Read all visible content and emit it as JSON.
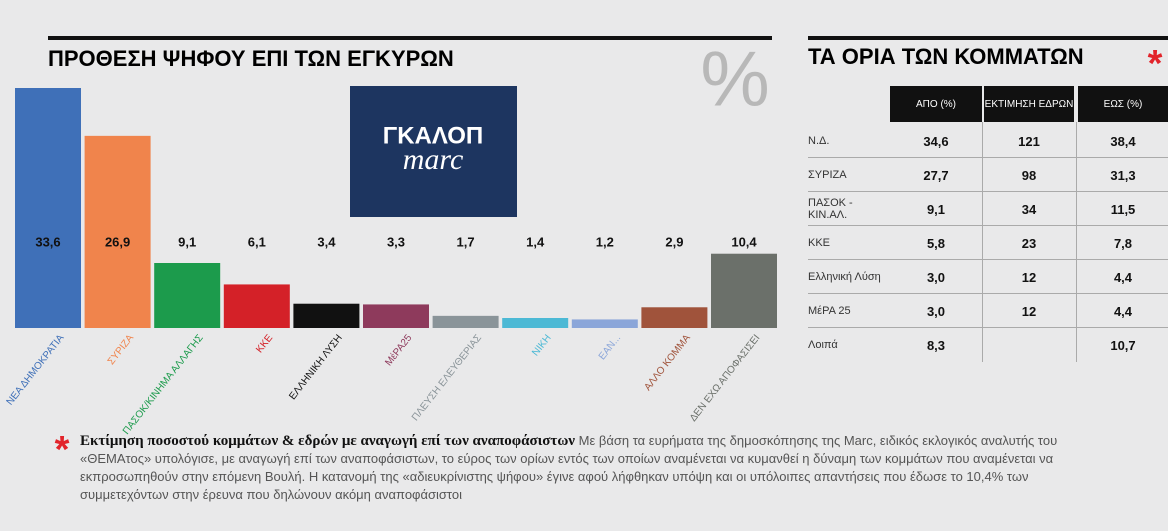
{
  "chart_data": {
    "type": "bar",
    "title": "ΠΡΟΘΕΣΗ ΨΗΦΟΥ ΕΠΙ ΤΩΝ ΕΓΚΥΡΩΝ",
    "annotation": "%",
    "categories": [
      "ΝΕΑ ΔΗΜΟΚΡΑΤΙΑ",
      "ΣΥΡΙΖΑ",
      "ΠΑΣΟΚ/ΚΙΝΗΜΑ ΑΛΛΑΓΗΣ",
      "ΚΚΕ",
      "ΕΛΛΗΝΙΚΗ ΛΥΣΗ",
      "ΜέΡΑ25",
      "ΠΛΕΥΣΗ ΕΛΕΥΘΕΡΙΑΣ",
      "ΝΙΚΗ",
      "ΕΑΝ...",
      "ΑΛΛΟ ΚΟΜΜΑ",
      "ΔΕΝ ΕΧΩ ΑΠΟΦΑΣΙΣΕΙ"
    ],
    "values": [
      33.6,
      26.9,
      9.1,
      6.1,
      3.4,
      3.3,
      1.7,
      1.4,
      1.2,
      2.9,
      10.4
    ],
    "value_labels": [
      "33,6",
      "26,9",
      "9,1",
      "6,1",
      "3,4",
      "3,3",
      "1,7",
      "1,4",
      "1,2",
      "2,9",
      "10,4"
    ],
    "colors": [
      "#3f70b8",
      "#f0844c",
      "#1c9b4c",
      "#d42128",
      "#111111",
      "#8e3a5c",
      "#8a9499",
      "#4cb9d5",
      "#8ba6d9",
      "#a0533b",
      "#6b706a"
    ]
  },
  "logo": {
    "name": "ΓΚΑΛΟΠ",
    "brand": "marc"
  },
  "table": {
    "title": "ΤΑ ΟΡΙΑ ΤΩΝ ΚΟΜΜΑΤΩΝ",
    "mark": "*",
    "header": [
      "ΑΠΟ (%)",
      "ΕΚΤΙΜΗΣΗ ΕΔΡΩΝ",
      "ΕΩΣ (%)"
    ],
    "rows": [
      [
        "Ν.Δ.",
        "34,6",
        "121",
        "38,4"
      ],
      [
        "ΣΥΡΙΖΑ",
        "27,7",
        "98",
        "31,3"
      ],
      [
        "ΠΑΣΟΚ - ΚΙΝ.ΑΛ.",
        "9,1",
        "34",
        "11,5"
      ],
      [
        "ΚΚΕ",
        "5,8",
        "23",
        "7,8"
      ],
      [
        "Ελληνική Λύση",
        "3,0",
        "12",
        "4,4"
      ],
      [
        "ΜέΡΑ 25",
        "3,0",
        "12",
        "4,4"
      ],
      [
        "Λοιπά",
        "8,3",
        null,
        "10,7"
      ]
    ]
  },
  "footnote": {
    "mark": "*",
    "lead": "Εκτίμηση ποσοστού κομμάτων & εδρών με αναγωγή επί των αναποφάσιστων",
    "text": "Με βάση τα ευρήματα της δημοσκόπησης της Marc, ειδικός εκλογικός αναλυτής του «ΘΕΜΑτος» υπολόγισε, με αναγωγή επί των αναποφάσιστων, το εύρος των ορίων εντός των οποίων αναμένεται να κυμανθεί η δύναμη των κομμάτων που αναμένεται να εκπροσωπηθούν στην επόμενη Βουλή. Η κατανομή της «αδιευκρίνιστης ψήφου» έγινε αφού λήφθηκαν υπόψη και οι υπόλοιπες απαντήσεις που έδωσε το 10,4% των συμμετεχόντων στην έρευνα που δηλώνουν ακόμη αναποφάσιστοι"
  }
}
